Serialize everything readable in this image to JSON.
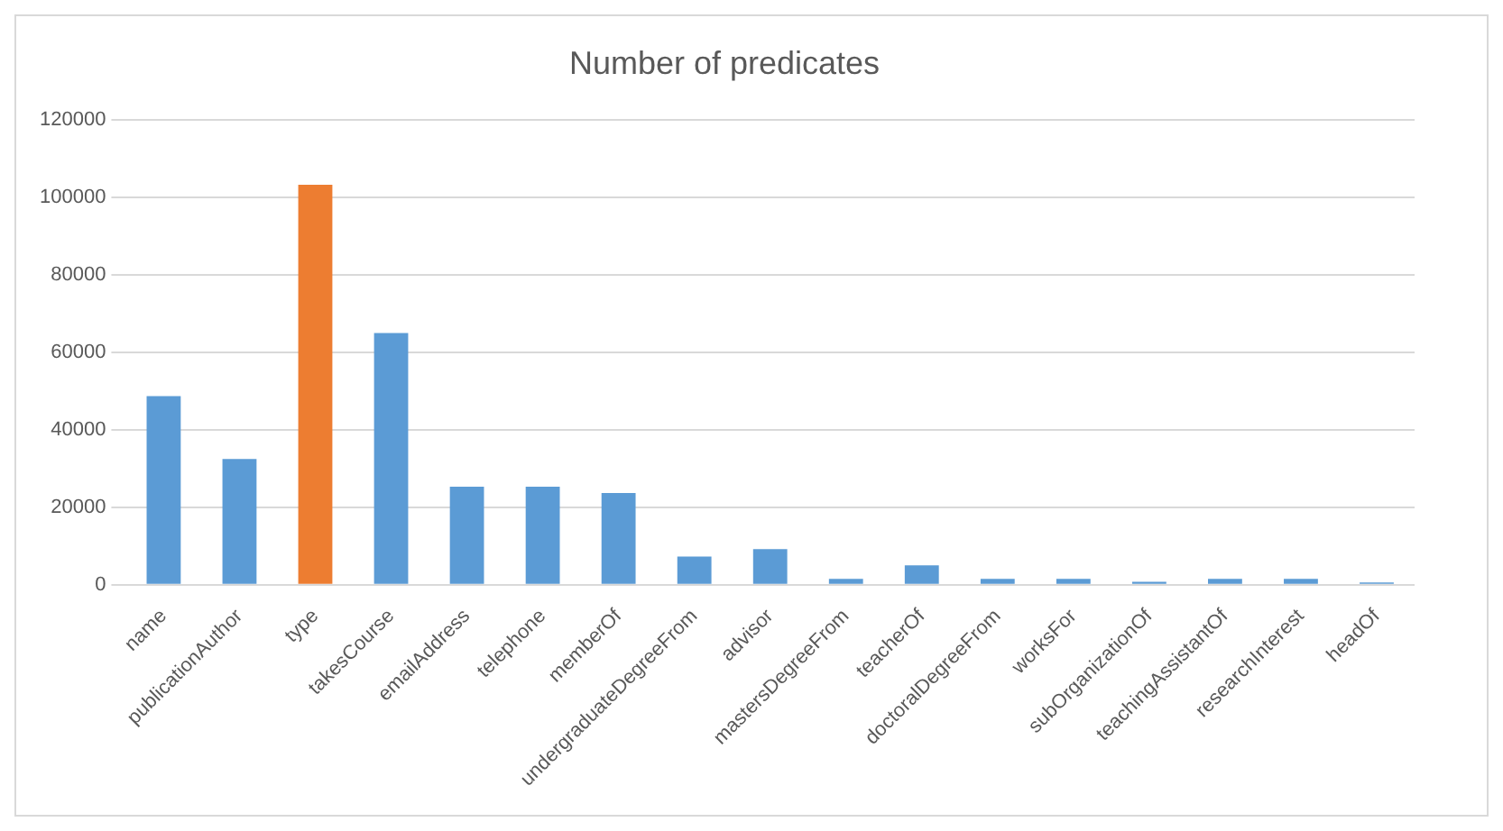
{
  "chart_data": {
    "type": "bar",
    "title": "Number of predicates",
    "categories": [
      "name",
      "publicationAuthor",
      "type",
      "takesCourse",
      "emailAddress",
      "telephone",
      "memberOf",
      "undergraduateDegreeFrom",
      "advisor",
      "mastersDegreeFrom",
      "teacherOf",
      "doctoralDegreeFrom",
      "worksFor",
      "subOrganizationOf",
      "teachingAssistantOf",
      "researchInterest",
      "headOf"
    ],
    "values": [
      48700,
      32500,
      103300,
      65000,
      25300,
      25300,
      23700,
      7300,
      9200,
      1500,
      5000,
      1500,
      1500,
      800,
      1500,
      1500,
      600
    ],
    "colors": [
      "#5b9bd5",
      "#5b9bd5",
      "#ed7d31",
      "#5b9bd5",
      "#5b9bd5",
      "#5b9bd5",
      "#5b9bd5",
      "#5b9bd5",
      "#5b9bd5",
      "#5b9bd5",
      "#5b9bd5",
      "#5b9bd5",
      "#5b9bd5",
      "#5b9bd5",
      "#5b9bd5",
      "#5b9bd5",
      "#5b9bd5"
    ],
    "ylim": [
      0,
      120000
    ],
    "yticks": [
      0,
      20000,
      40000,
      60000,
      80000,
      100000,
      120000
    ],
    "grid": "y",
    "legend": false
  }
}
